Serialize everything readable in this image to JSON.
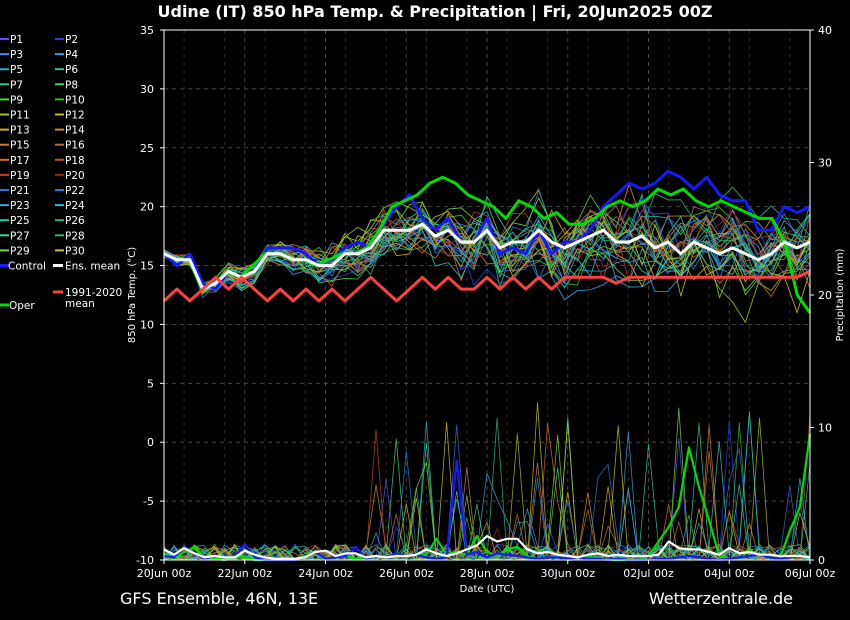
{
  "chart_data": {
    "type": "line",
    "title": "Udine  (IT)  850 hPa Temp. & Precipitation | Fri, 20Jun2025 00Z",
    "xlabel": "Date (UTC)",
    "ylabel": "850 hPa Temp. (°C)",
    "y2label": "Precipitation (mm)",
    "ylim": [
      -10,
      35
    ],
    "y2lim": [
      0,
      40
    ],
    "xlim": [
      0,
      64
    ],
    "x_step": "6h steps from 20Jun2025 00Z",
    "x_ticks": [
      {
        "x": 0,
        "label": "20Jun 00z"
      },
      {
        "x": 8,
        "label": "22Jun 00z"
      },
      {
        "x": 16,
        "label": "24Jun 00z"
      },
      {
        "x": 24,
        "label": "26Jun 00z"
      },
      {
        "x": 32,
        "label": "28Jun 00z"
      },
      {
        "x": 40,
        "label": "30Jun 00z"
      },
      {
        "x": 48,
        "label": "02Jul 00z"
      },
      {
        "x": 56,
        "label": "04Jul 00z"
      },
      {
        "x": 64,
        "label": "06Jul 00z"
      }
    ],
    "y_ticks": [
      -10,
      -5,
      0,
      5,
      10,
      15,
      20,
      25,
      30,
      35
    ],
    "y2_ticks": [
      0,
      10,
      20,
      30,
      40
    ],
    "grid": true,
    "legend": [
      {
        "name": "P1",
        "color": "#5050ff"
      },
      {
        "name": "P2",
        "color": "#2244dd"
      },
      {
        "name": "P3",
        "color": "#4488ee"
      },
      {
        "name": "P4",
        "color": "#3aa0e0"
      },
      {
        "name": "P5",
        "color": "#20b0c8"
      },
      {
        "name": "P6",
        "color": "#30c0a0"
      },
      {
        "name": "P7",
        "color": "#30c890"
      },
      {
        "name": "P8",
        "color": "#40d070"
      },
      {
        "name": "P9",
        "color": "#50d040"
      },
      {
        "name": "P10",
        "color": "#30c030"
      },
      {
        "name": "P11",
        "color": "#a0c020"
      },
      {
        "name": "P12",
        "color": "#c0c020"
      },
      {
        "name": "P13",
        "color": "#d0b020"
      },
      {
        "name": "P14",
        "color": "#d09020"
      },
      {
        "name": "P15",
        "color": "#c88040"
      },
      {
        "name": "P16",
        "color": "#b07040"
      },
      {
        "name": "P17",
        "color": "#d07030"
      },
      {
        "name": "P18",
        "color": "#c05030"
      },
      {
        "name": "P19",
        "color": "#c04030"
      },
      {
        "name": "P20",
        "color": "#a02020"
      },
      {
        "name": "P21",
        "color": "#3070d0"
      },
      {
        "name": "P22",
        "color": "#2080d0"
      },
      {
        "name": "P23",
        "color": "#40a0d8"
      },
      {
        "name": "P24",
        "color": "#30b0e0"
      },
      {
        "name": "P25",
        "color": "#30c8a8"
      },
      {
        "name": "P26",
        "color": "#20b880"
      },
      {
        "name": "P27",
        "color": "#30d890"
      },
      {
        "name": "P28",
        "color": "#30b860"
      },
      {
        "name": "P29",
        "color": "#80d040"
      },
      {
        "name": "P30",
        "color": "#c8c020"
      },
      {
        "name": "Control",
        "color": "#1818ff"
      },
      {
        "name": "Ens. mean",
        "color": "#ffffff"
      },
      {
        "name": "1991-2020 mean",
        "color": "#ff4040"
      },
      {
        "name": "Oper",
        "color": "#00dd00"
      }
    ],
    "series": [
      {
        "name": "Control",
        "axis": "temp",
        "color": "#1818ff",
        "values": [
          16,
          15,
          16,
          13.5,
          13,
          14.5,
          14,
          14.5,
          16.5,
          16.5,
          16.5,
          16,
          15,
          15.5,
          16.5,
          17,
          16.5,
          18.5,
          20,
          21,
          19,
          18,
          19,
          17,
          17,
          19,
          16,
          16.5,
          16,
          18,
          16,
          17,
          17,
          18,
          20,
          21,
          22,
          21.5,
          22,
          23,
          22.5,
          21.5,
          22.5,
          21,
          20.5,
          20.5,
          18,
          18,
          20,
          19.5,
          20
        ]
      },
      {
        "name": "Oper",
        "axis": "temp",
        "color": "#00dd00",
        "values": [
          16,
          15.5,
          15.5,
          13,
          13.5,
          14.5,
          14,
          15,
          16,
          16,
          15.5,
          15.5,
          15,
          15.5,
          16,
          16,
          16.5,
          18,
          20,
          20.5,
          21,
          22,
          22.5,
          22,
          21,
          20.5,
          20,
          19,
          20.5,
          20,
          19,
          19.5,
          18.5,
          18.5,
          19,
          20,
          20.5,
          20,
          20.5,
          21.5,
          21,
          21.5,
          20.5,
          20,
          20.5,
          20,
          19.5,
          19,
          19,
          17,
          12.5,
          11
        ]
      },
      {
        "name": "Ens. mean",
        "axis": "temp",
        "color": "#ffffff",
        "values": [
          16,
          15.5,
          15.5,
          13,
          13.5,
          14.5,
          14,
          14.5,
          16,
          16,
          15.5,
          15.5,
          15,
          15,
          16,
          16,
          16.5,
          18,
          18,
          18,
          18.5,
          17.5,
          18,
          17,
          17,
          18,
          16.5,
          17,
          17,
          18,
          17,
          16.5,
          17,
          17.5,
          18,
          17,
          17,
          17.5,
          16.5,
          17,
          16,
          17,
          16.5,
          16,
          16.5,
          16,
          15.5,
          16,
          17,
          16.5,
          17
        ]
      },
      {
        "name": "1991-2020 mean",
        "axis": "temp",
        "color": "#ff4040",
        "values": [
          12,
          13,
          12,
          13,
          14,
          13,
          14,
          13,
          12,
          13,
          12,
          13,
          12,
          13,
          12,
          13,
          14,
          13,
          12,
          13,
          14,
          13,
          14,
          13,
          13,
          14,
          13,
          14,
          13,
          14,
          13,
          14,
          14,
          14,
          14,
          13.5,
          14,
          14,
          14,
          14,
          14,
          14,
          14,
          14,
          14,
          14,
          14,
          14,
          14,
          14,
          14.5
        ]
      },
      {
        "name": "Oper precip",
        "axis": "precip",
        "color": "#00dd00",
        "values": [
          0.5,
          0.1,
          0.6,
          1.0,
          0.1,
          0.1,
          0,
          0.2,
          0.2,
          0,
          0,
          0,
          0,
          0,
          0.3,
          0.6,
          0.1,
          0.2,
          0.3,
          0.1,
          0.1,
          0.3,
          0.2,
          0.5,
          0.3,
          0.4,
          0.4,
          1.6,
          0.4,
          0.6,
          0.4,
          1.8,
          0.6,
          0.3,
          0.8,
          1.0,
          0.3,
          0.1,
          0.2,
          0.4,
          0,
          0.1,
          0.2,
          0.2,
          0,
          0,
          0,
          0,
          0.3,
          1.4,
          2.5,
          4.0,
          8.5,
          5.5,
          3.0,
          0.3,
          0.1,
          0.1,
          0.7,
          0.4,
          0.2,
          0.1,
          2.2,
          4.0,
          9.5
        ]
      },
      {
        "name": "Control precip",
        "axis": "precip",
        "color": "#1818ff",
        "values": [
          0.3,
          0.2,
          1.0,
          0.5,
          0.1,
          0.3,
          0.2,
          0.2,
          1.2,
          0.2,
          0,
          0,
          0,
          0,
          0.2,
          0.6,
          0.1,
          0.2,
          0.3,
          1.0,
          0.1,
          0.3,
          0.2,
          0.5,
          0.3,
          0.4,
          0.2,
          0.1,
          0.2,
          7.5,
          0.4,
          0.6,
          0.2,
          0.5,
          0.4,
          0.3,
          0.2,
          0.1,
          0.2,
          0.2,
          0.1,
          0.2,
          0.1,
          0.1,
          0,
          0.1,
          0,
          0,
          0,
          0.1,
          0.1,
          0.2,
          0.3,
          0.2,
          0.1,
          0,
          0.1,
          0.2,
          0.3,
          0.4,
          0.2,
          0.1,
          0.2,
          0.3,
          0.2
        ]
      },
      {
        "name": "Ens. mean precip",
        "axis": "precip",
        "color": "#ffffff",
        "values": [
          0.8,
          0.4,
          0.9,
          0.5,
          0.2,
          0.3,
          0.2,
          0.2,
          0.7,
          0.4,
          0.2,
          0.1,
          0.1,
          0.1,
          0.2,
          0.6,
          0.7,
          0.3,
          0.5,
          0.5,
          0.2,
          0.3,
          0.2,
          0.3,
          0.3,
          0.4,
          0.8,
          0.5,
          0.3,
          0.5,
          0.8,
          1.1,
          1.8,
          1.4,
          1.6,
          1.6,
          0.8,
          0.5,
          0.6,
          0.4,
          0.3,
          0.2,
          0.4,
          0.5,
          0.3,
          0.4,
          0.3,
          0.3,
          0.3,
          0.4,
          1.4,
          0.9,
          0.8,
          0.8,
          0.6,
          0.4,
          0.9,
          0.5,
          0.6,
          0.4,
          0.4,
          0.3,
          0.3,
          0.3,
          0.2
        ]
      }
    ],
    "annotations_footer": [
      "GFS Ensemble, 46N, 13E",
      "Wetterzentrale.de"
    ]
  }
}
